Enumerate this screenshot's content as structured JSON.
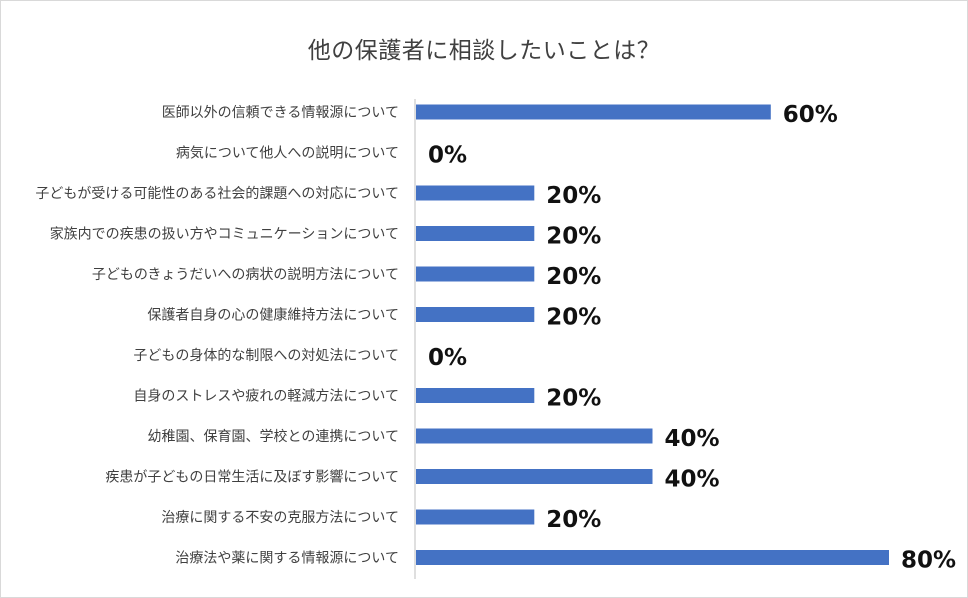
{
  "chart_data": {
    "type": "bar",
    "orientation": "horizontal",
    "title": "他の保護者に相談したいことは？",
    "xlabel": "",
    "ylabel": "",
    "xlim": [
      0,
      80
    ],
    "grid": false,
    "legend": "none",
    "bar_color": "#4472c4",
    "categories": [
      "医師以外の信頼できる情報源について",
      "病気について他人への説明について",
      "子どもが受ける可能性のある社会的課題への対応について",
      "家族内での疾患の扱い方やコミュニケーションについて",
      "子どものきょうだいへの病状の説明方法について",
      "保護者自身の心の健康維持方法について",
      "子どもの身体的な制限への対処法について",
      "自身のストレスや疲れの軽減方法について",
      "幼稚園、保育園、学校との連携について",
      "疾患が子どもの日常生活に及ぼす影響について",
      "治療に関する不安の克服方法について",
      "治療法や薬に関する情報源について"
    ],
    "values": [
      60,
      0,
      20,
      20,
      20,
      20,
      0,
      20,
      40,
      40,
      20,
      80
    ],
    "value_labels": [
      "60%",
      "0%",
      "20%",
      "20%",
      "20%",
      "20%",
      "0%",
      "20%",
      "40%",
      "40%",
      "20%",
      "80%"
    ]
  }
}
